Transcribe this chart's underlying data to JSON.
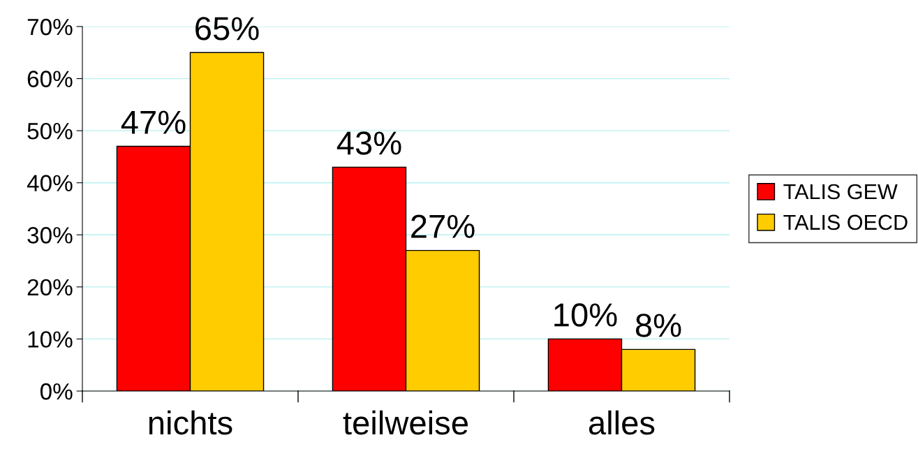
{
  "chart_data": {
    "type": "bar",
    "categories": [
      "nichts",
      "teilweise",
      "alles"
    ],
    "series": [
      {
        "name": "TALIS GEW",
        "color": "#ff0000",
        "values": [
          47,
          43,
          10
        ],
        "value_labels": [
          "47%",
          "43%",
          "10%"
        ]
      },
      {
        "name": "TALIS OECD",
        "color": "#ffcc00",
        "values": [
          65,
          27,
          8
        ],
        "value_labels": [
          "65%",
          "27%",
          "8%"
        ]
      }
    ],
    "ylim": [
      0,
      70
    ],
    "yticks": [
      {
        "value": 0,
        "label": "0%"
      },
      {
        "value": 10,
        "label": "10%"
      },
      {
        "value": 20,
        "label": "20%"
      },
      {
        "value": 30,
        "label": "30%"
      },
      {
        "value": 40,
        "label": "40%"
      },
      {
        "value": 50,
        "label": "50%"
      },
      {
        "value": 60,
        "label": "60%"
      },
      {
        "value": 70,
        "label": "70%"
      }
    ],
    "grid": "y",
    "legend": "right"
  }
}
